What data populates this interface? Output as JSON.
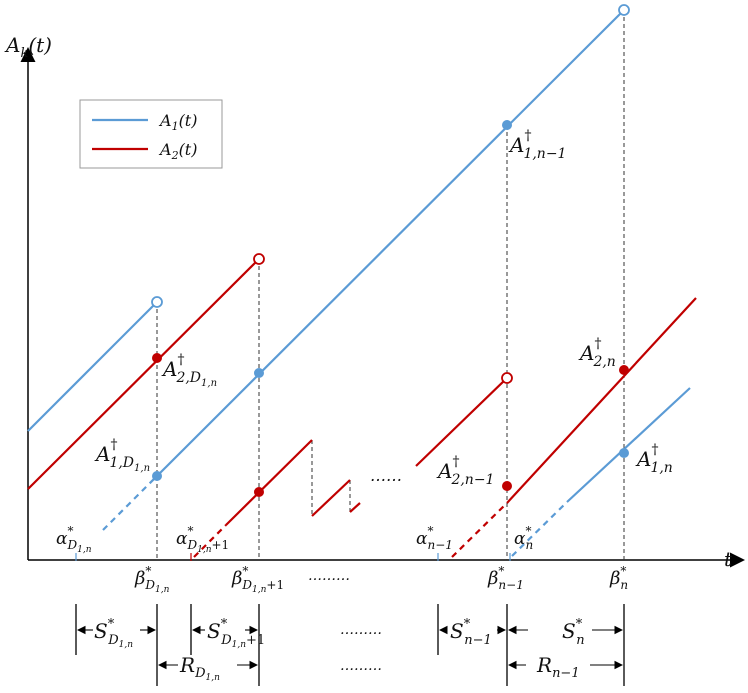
{
  "axes": {
    "y_label_main": "A",
    "y_label_sub": "k",
    "y_label_tail": "(t)",
    "x_label": "t"
  },
  "legend": {
    "item1": {
      "main": "A",
      "sub": "1",
      "tail": "(t)"
    },
    "item2": {
      "main": "A",
      "sub": "2",
      "tail": "(t)"
    }
  },
  "colors": {
    "blue": "#5b9bd5",
    "red": "#c00000",
    "black": "#000000"
  },
  "point_labels": {
    "a1_n_minus_1": {
      "main": "A",
      "sup": "†",
      "sub": "1,n−1"
    },
    "a2_D1n": {
      "main": "A",
      "sup": "†",
      "sub": "2,D",
      "subsub": "1,n"
    },
    "a1_D1n": {
      "main": "A",
      "sup": "†",
      "sub": "1,D",
      "subsub": "1,n"
    },
    "a2_n": {
      "main": "A",
      "sup": "†",
      "sub": "2,n"
    },
    "a2_n_minus_1": {
      "main": "A",
      "sup": "†",
      "sub": "2,n−1"
    },
    "a1_n": {
      "main": "A",
      "sup": "†",
      "sub": "1,n"
    }
  },
  "alpha_labels": {
    "alpha_D1n": {
      "main": "α",
      "sup": "*",
      "sub": "D",
      "subsub": "1,n"
    },
    "alpha_D1n_plus_1": {
      "main": "α",
      "sup": "*",
      "sub": "D",
      "subsub": "1,n",
      "tail": "+1"
    },
    "alpha_n_minus_1": {
      "main": "α",
      "sup": "*",
      "sub": "n−1"
    },
    "alpha_n": {
      "main": "α",
      "sup": "*",
      "sub": "n"
    }
  },
  "beta_labels": {
    "beta_D1n": {
      "main": "β",
      "sup": "*",
      "sub": "D",
      "subsub": "1,n"
    },
    "beta_D1n_plus_1": {
      "main": "β",
      "sup": "*",
      "sub": "D",
      "subsub": "1,n",
      "tail": "+1"
    },
    "beta_n_minus_1": {
      "main": "β",
      "sup": "*",
      "sub": "n−1"
    },
    "beta_n": {
      "main": "β",
      "sup": "*",
      "sub": "n"
    }
  },
  "intervals": {
    "s_D1n": {
      "main": "S",
      "sup": "*",
      "sub": "D",
      "subsub": "1,n"
    },
    "s_D1n_plus_1": {
      "main": "S",
      "sup": "*",
      "sub": "D",
      "subsub": "1,n",
      "tail": "+1"
    },
    "s_n_minus_1": {
      "main": "S",
      "sup": "*",
      "sub": "n−1"
    },
    "s_n": {
      "main": "S",
      "sup": "*",
      "sub": "n"
    },
    "r_D1n": {
      "main": "R",
      "sub": "D",
      "subsub": "1,n"
    },
    "r_n_minus_1": {
      "main": "R",
      "sub": "n−1"
    }
  },
  "ellipses": {
    "middle_plot": "……",
    "axis": "………",
    "row1": "………",
    "row2": "………"
  }
}
